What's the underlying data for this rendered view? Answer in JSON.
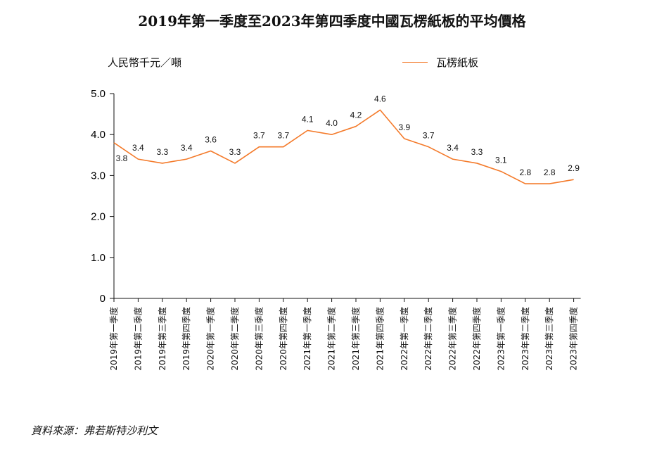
{
  "chart_data": {
    "type": "line",
    "title": "2019年第一季度至2023年第四季度中國瓦楞紙板的平均價格",
    "ylabel": "人民幣千元／噸",
    "xlabel": "",
    "categories": [
      "2019年第一季度",
      "2019年第二季度",
      "2019年第三季度",
      "2019年第四季度",
      "2020年第一季度",
      "2020年第二季度",
      "2020年第三季度",
      "2020年第四季度",
      "2021年第一季度",
      "2021年第二季度",
      "2021年第三季度",
      "2021年第四季度",
      "2022年第一季度",
      "2022年第二季度",
      "2022年第三季度",
      "2022年第四季度",
      "2023年第一季度",
      "2023年第二季度",
      "2023年第三季度",
      "2023年第四季度"
    ],
    "series": [
      {
        "name": "瓦楞紙板",
        "color": "#f47a2a",
        "values": [
          3.8,
          3.4,
          3.3,
          3.4,
          3.6,
          3.3,
          3.7,
          3.7,
          4.1,
          4.0,
          4.2,
          4.6,
          3.9,
          3.7,
          3.4,
          3.3,
          3.1,
          2.8,
          2.8,
          2.9
        ],
        "labels": [
          "3.8",
          "3.4",
          "3.3",
          "3.4",
          "3.6",
          "3.3",
          "3.7",
          "3.7",
          "4.1",
          "4.0",
          "4.2",
          "4.6",
          "3.9",
          "3.7",
          "3.4",
          "3.3",
          "3.1",
          "2.8",
          "2.8",
          "2.9"
        ]
      }
    ],
    "ylim": [
      0,
      5
    ],
    "yticks": [
      0,
      1,
      2,
      3,
      4,
      5
    ],
    "ytick_labels": [
      "0",
      "1.0",
      "2.0",
      "3.0",
      "4.0",
      "5.0"
    ],
    "grid": false,
    "legend": "top-right"
  },
  "source": "資料來源：弗若斯特沙利文"
}
